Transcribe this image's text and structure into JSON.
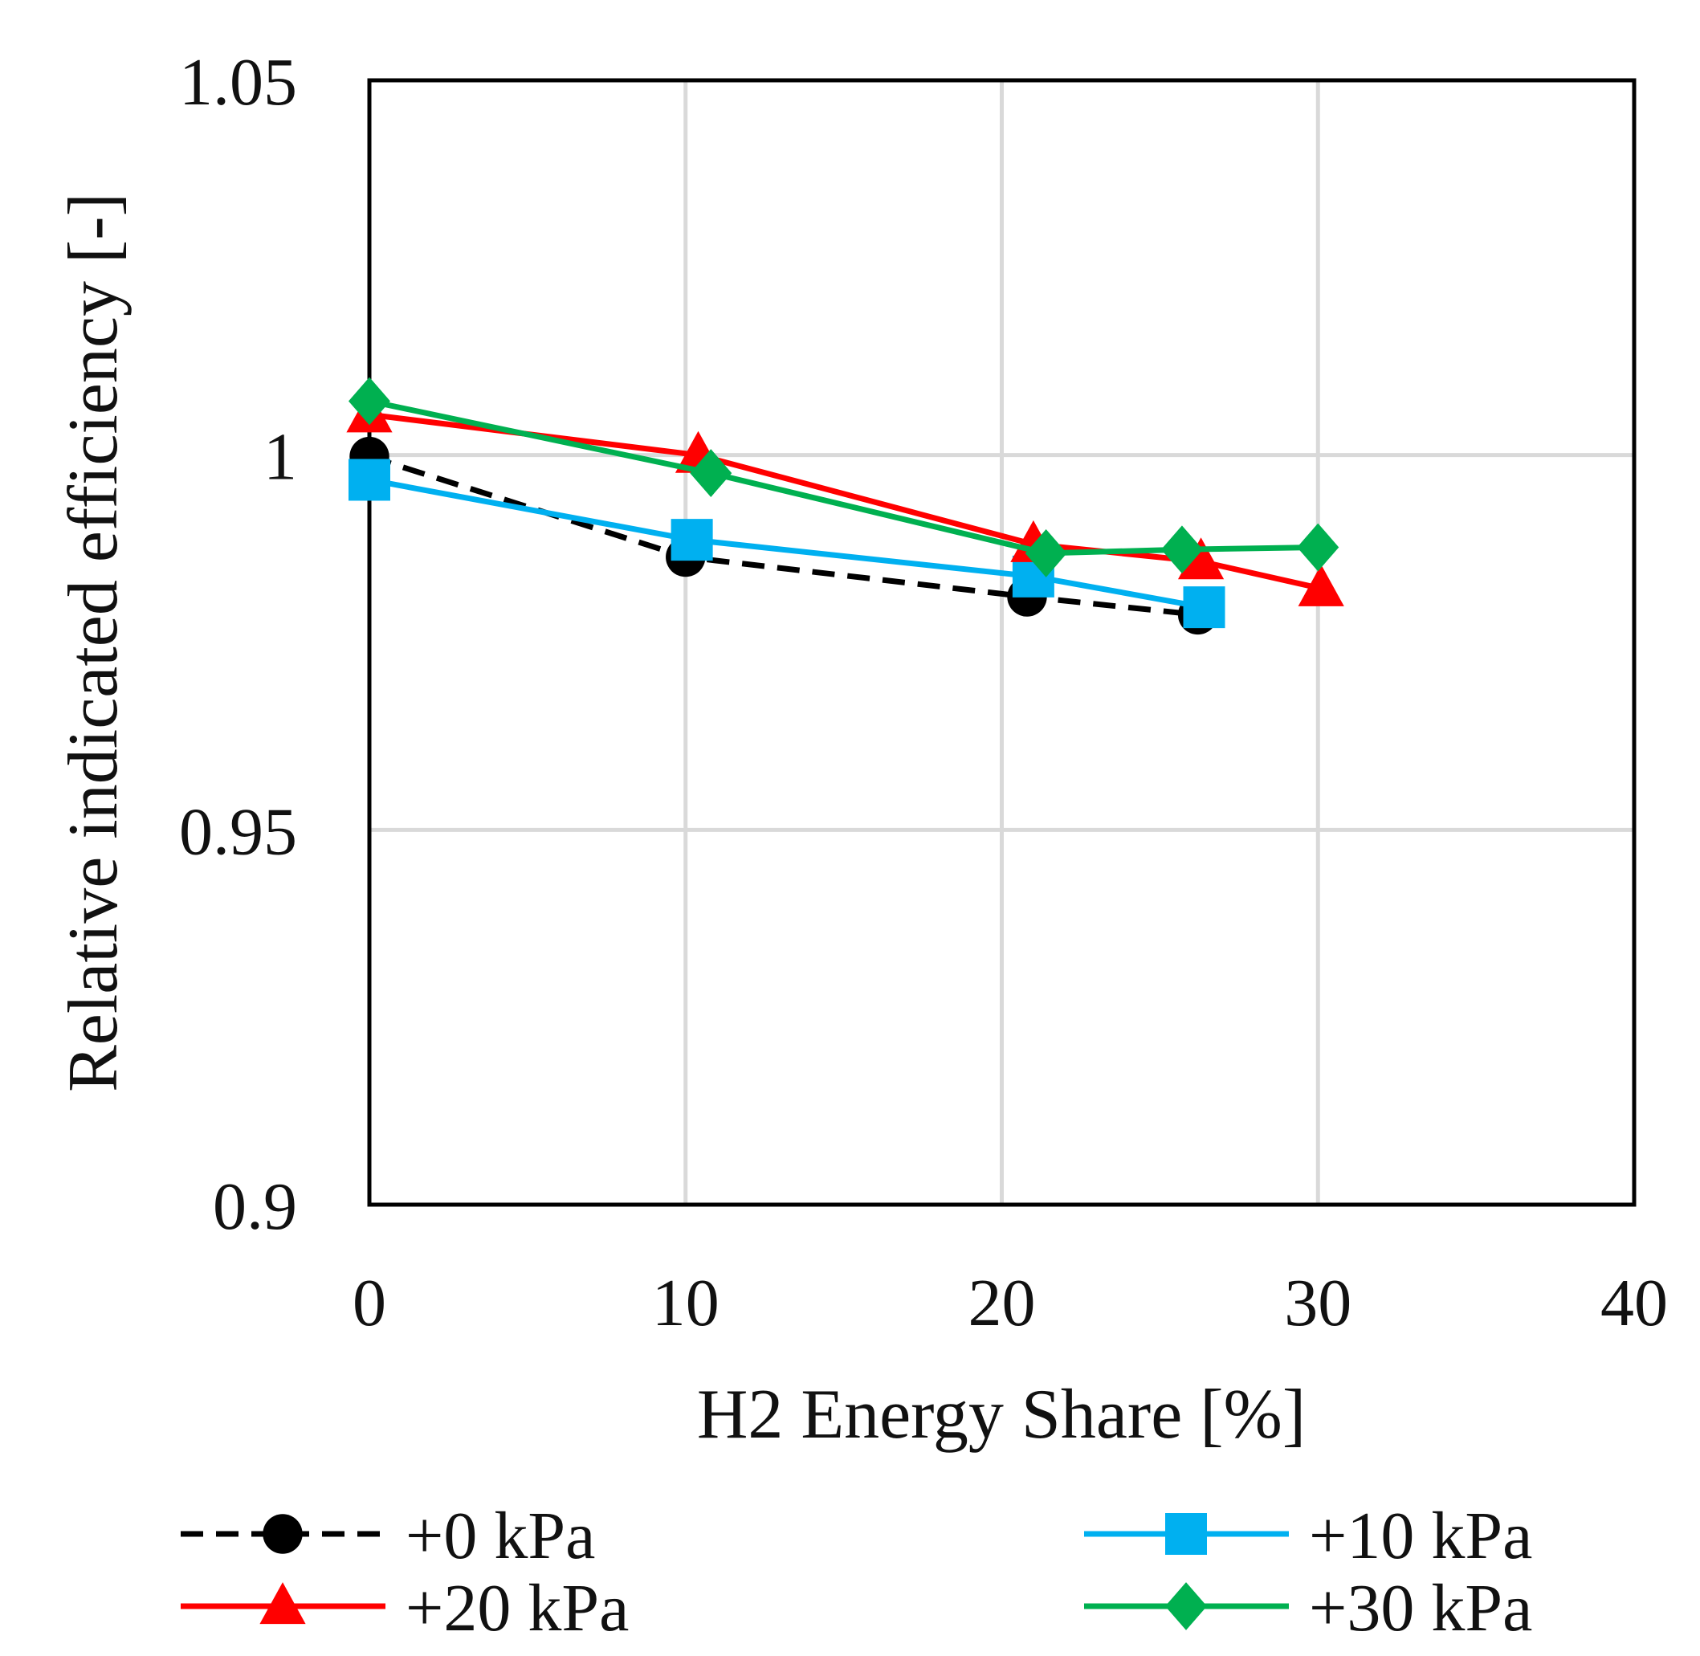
{
  "chart_data": {
    "type": "line",
    "title": "",
    "xlabel": "H2 Energy Share [%]",
    "ylabel": "Relative indicated efficiency [-]",
    "xlim": [
      0,
      40
    ],
    "ylim": [
      0.9,
      1.05
    ],
    "x_ticks": [
      "0",
      "10",
      "20",
      "30",
      "40"
    ],
    "y_ticks": [
      "0.9",
      "0.95",
      "1",
      "1.05"
    ],
    "grid": true,
    "legend_position": "bottom",
    "series": [
      {
        "name": "+0 kPa",
        "color": "#000000",
        "line_style": "dashed",
        "marker": "circle",
        "x": [
          0,
          10,
          20.8,
          26.2
        ],
        "y": [
          0.9998,
          0.9864,
          0.9811,
          0.9787
        ]
      },
      {
        "name": "+10 kPa",
        "color": "#00b0f0",
        "line_style": "solid",
        "marker": "square",
        "x": [
          0,
          10.2,
          21.0,
          26.4
        ],
        "y": [
          0.9967,
          0.9887,
          0.9838,
          0.9797
        ]
      },
      {
        "name": "+20 kPa",
        "color": "#ff0000",
        "line_style": "solid",
        "marker": "triangle",
        "x": [
          0,
          10.4,
          21.0,
          26.3,
          30.1
        ],
        "y": [
          1.0054,
          1.0,
          0.9881,
          0.9858,
          0.9822
        ]
      },
      {
        "name": "+30 kPa",
        "color": "#00b050",
        "line_style": "solid",
        "marker": "diamond",
        "x": [
          0,
          10.8,
          21.4,
          25.7,
          30.0
        ],
        "y": [
          1.0072,
          0.9976,
          0.9869,
          0.9874,
          0.9877
        ]
      }
    ]
  }
}
